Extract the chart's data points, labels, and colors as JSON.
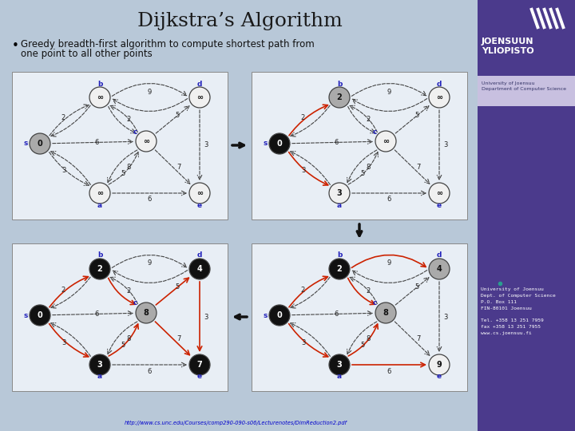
{
  "title": "Dijkstra’s Algorithm",
  "bullet_line1": "Greedy breadth-first algorithm to compute shortest path from",
  "bullet_line2": "one point to all other points",
  "url": "http://www.cs.unc.edu/Courses/comp290-090-s06/Lecturenotes/DimReduction2.pdf",
  "bg_color": "#b8c8d8",
  "sidebar_color": "#4b3a8c",
  "sidebar_text_bg": "#c8c0e0",
  "panel_bg": "#e8eef5",
  "node_black": "#111111",
  "node_gray": "#aaaaaa",
  "node_white": "#f0f0f0",
  "label_blue": "#2222bb",
  "edge_dark": "#444444",
  "edge_red": "#cc2200"
}
